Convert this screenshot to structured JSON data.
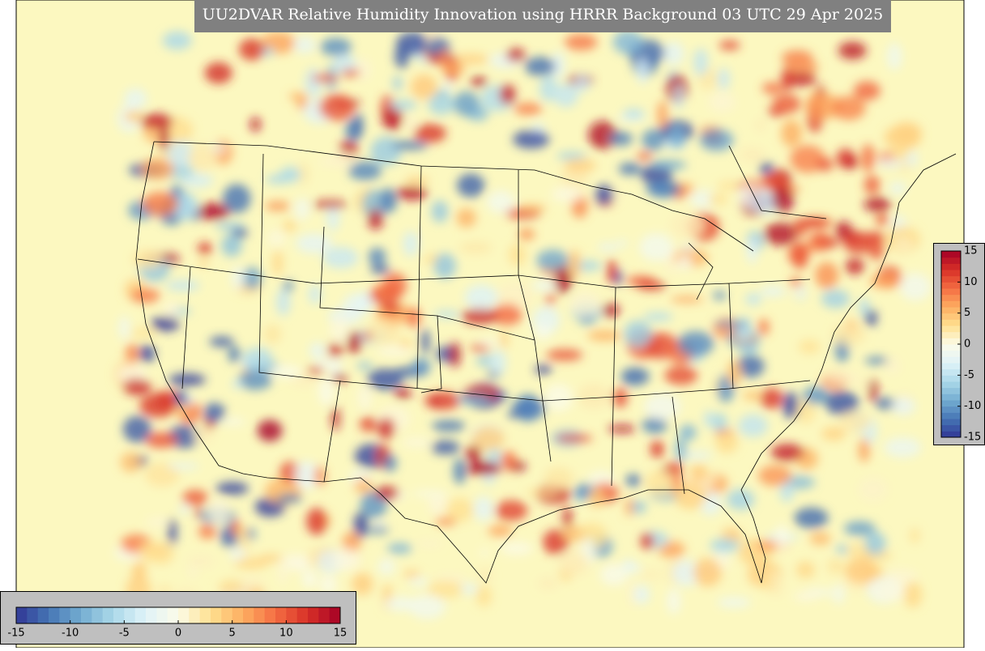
{
  "title": "UU2DVAR Relative Humidity Innovation using HRRR Background 03 UTC 29 Apr 2025",
  "colormap": [
    "#313695",
    "#4575b4",
    "#74add1",
    "#abd9e9",
    "#e0f3f8",
    "#fbfbe8",
    "#fee090",
    "#fdae61",
    "#f46d43",
    "#d73027",
    "#a50026"
  ],
  "colorbars": [
    {
      "orientation": "horizontal",
      "range": [
        -15,
        15
      ],
      "ticks": [
        -15,
        -10,
        -5,
        0,
        5,
        10,
        15
      ]
    },
    {
      "orientation": "vertical",
      "range": [
        -15,
        15
      ],
      "ticks": [
        15,
        10,
        5,
        0,
        -5,
        -10,
        -15
      ]
    }
  ]
}
